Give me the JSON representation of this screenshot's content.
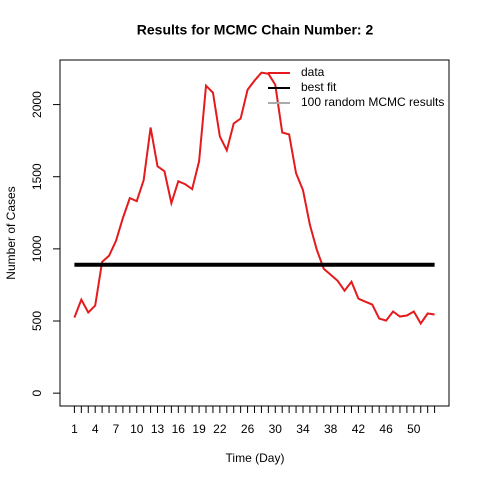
{
  "chart_data": {
    "type": "line",
    "title": "Results for MCMC Chain Number: 2",
    "x_label": "Time (Day)",
    "y_label": "Number of Cases",
    "x": [
      1,
      2,
      3,
      4,
      5,
      6,
      7,
      8,
      9,
      10,
      11,
      12,
      13,
      14,
      15,
      16,
      17,
      18,
      19,
      20,
      21,
      22,
      23,
      24,
      25,
      26,
      27,
      28,
      29,
      30,
      31,
      32,
      33,
      34,
      35,
      36,
      37,
      38,
      39,
      40,
      41,
      42,
      43,
      44,
      45,
      46,
      47,
      48,
      49,
      50,
      51,
      52,
      53
    ],
    "series": [
      {
        "name": "data",
        "color": "#e41a1c",
        "width": 2,
        "values": [
          524,
          648,
          559,
          607,
          910,
          952,
          1055,
          1214,
          1352,
          1331,
          1476,
          1841,
          1572,
          1538,
          1317,
          1469,
          1448,
          1414,
          1607,
          2131,
          2083,
          1779,
          1683,
          1869,
          1903,
          2103,
          2166,
          2221,
          2214,
          2138,
          1807,
          1793,
          1524,
          1407,
          1166,
          993,
          862,
          821,
          779,
          710,
          772,
          655,
          634,
          614,
          517,
          503,
          566,
          531,
          538,
          566,
          483,
          552,
          545
        ]
      },
      {
        "name": "best fit",
        "color": "#000000",
        "width": 4,
        "values": [
          890,
          890,
          890,
          890,
          890,
          890,
          890,
          890,
          890,
          890,
          890,
          890,
          890,
          890,
          890,
          890,
          890,
          890,
          890,
          890,
          890,
          890,
          890,
          890,
          890,
          890,
          890,
          890,
          890,
          890,
          890,
          890,
          890,
          890,
          890,
          890,
          890,
          890,
          890,
          890,
          890,
          890,
          890,
          890,
          890,
          890,
          890,
          890,
          890,
          890,
          890,
          890,
          890
        ]
      }
    ],
    "legend": {
      "position": "top-right",
      "entries": [
        {
          "name": "data",
          "color": "#e41a1c"
        },
        {
          "name": "best fit",
          "color": "#000000"
        },
        {
          "name": "100 random MCMC results",
          "color": "#aaaaaa"
        }
      ]
    },
    "xlim": [
      -1.08,
      55.08
    ],
    "ylim": [
      -89,
      2309
    ],
    "xticks": [
      1,
      4,
      7,
      10,
      13,
      16,
      19,
      22,
      26,
      30,
      34,
      38,
      42,
      46,
      50
    ],
    "yticks": [
      0,
      500,
      1000,
      1500,
      2000
    ]
  }
}
